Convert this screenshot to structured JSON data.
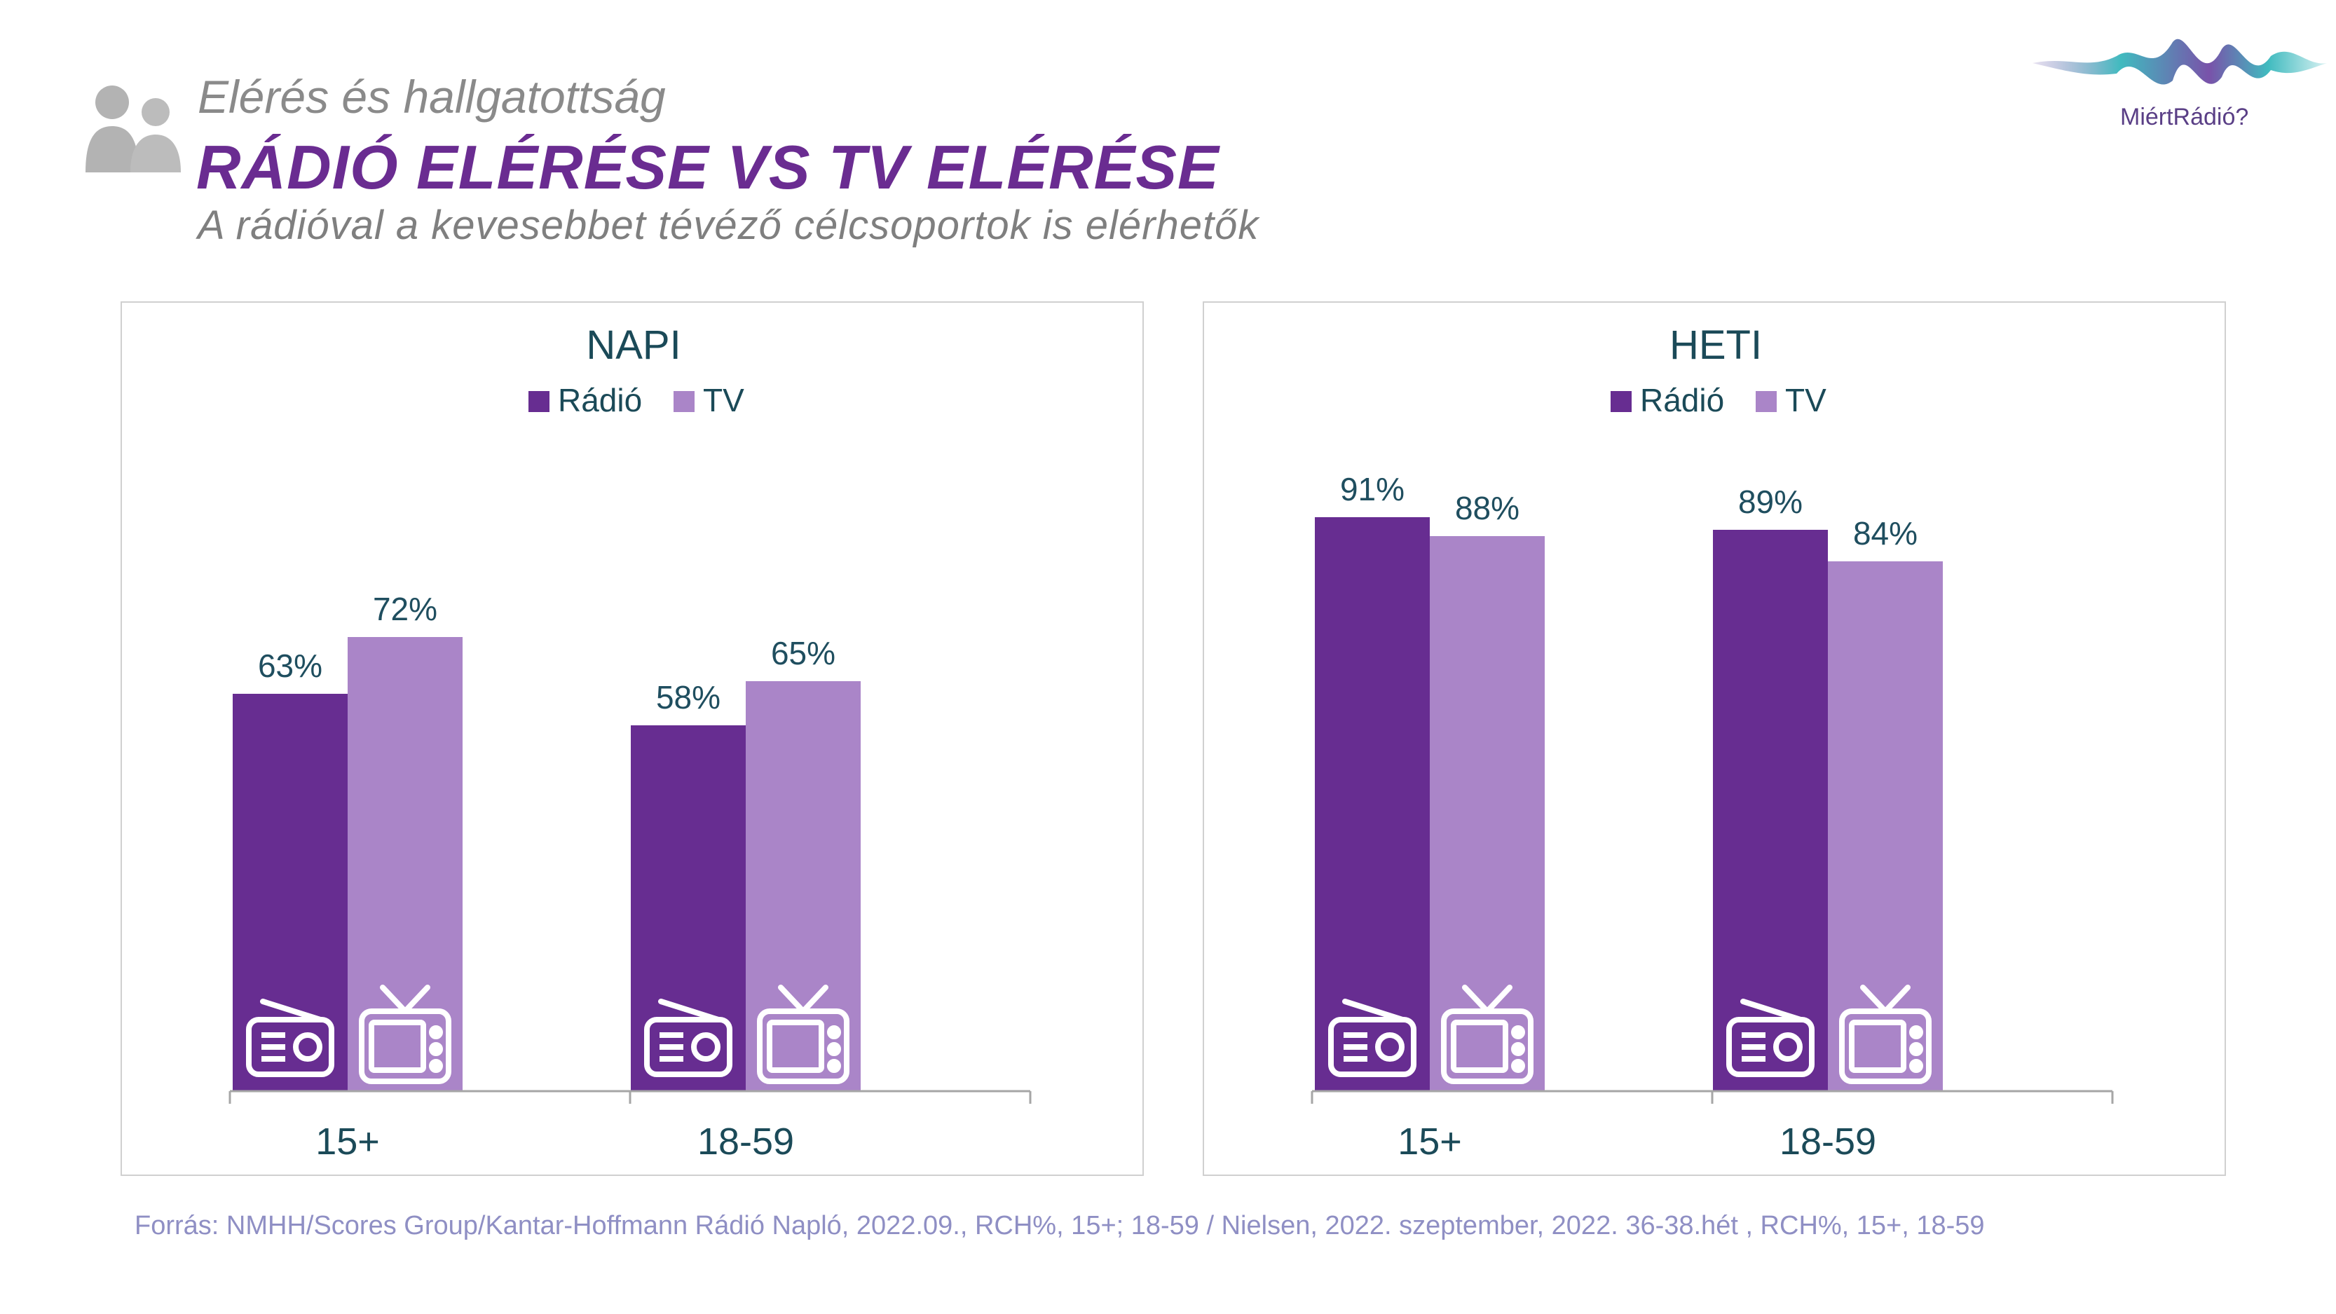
{
  "header": {
    "kicker": "Elérés és hallgatottság",
    "title": "RÁDIÓ ELÉRÉSE VS TV ELÉRÉSE",
    "subtitle": "A rádióval a kevesebbet tévéző célcsoportok is elérhetők"
  },
  "logo": {
    "text": "MiértRádió?"
  },
  "colors": {
    "radio": "#672d91",
    "tv": "#aa85c8",
    "title": "#6a2c91",
    "label": "#1f4e5f"
  },
  "icons": {
    "radio": "radio-icon",
    "tv": "tv-icon",
    "people": "people-icon"
  },
  "chart_data": [
    {
      "type": "bar",
      "title": "NAPI",
      "categories": [
        "15+",
        "18-59"
      ],
      "series": [
        {
          "name": "Rádió",
          "values": [
            63,
            58
          ],
          "labels": [
            "63%",
            "58%"
          ]
        },
        {
          "name": "TV",
          "values": [
            72,
            65
          ],
          "labels": [
            "72%",
            "65%"
          ]
        }
      ],
      "ylim": [
        0,
        100
      ],
      "unit": "%",
      "legend": "top",
      "grid": false
    },
    {
      "type": "bar",
      "title": "HETI",
      "categories": [
        "15+",
        "18-59"
      ],
      "series": [
        {
          "name": "Rádió",
          "values": [
            91,
            89
          ],
          "labels": [
            "91%",
            "89%"
          ]
        },
        {
          "name": "TV",
          "values": [
            88,
            84
          ],
          "labels": [
            "88%",
            "84%"
          ]
        }
      ],
      "ylim": [
        0,
        100
      ],
      "unit": "%",
      "legend": "top",
      "grid": false
    }
  ],
  "footer": {
    "source": "Forrás: NMHH/Scores Group/Kantar-Hoffmann Rádió Napló, 2022.09., RCH%, 15+; 18-59 / Nielsen, 2022. szeptember, 2022. 36-38.hét , RCH%, 15+, 18-59"
  }
}
